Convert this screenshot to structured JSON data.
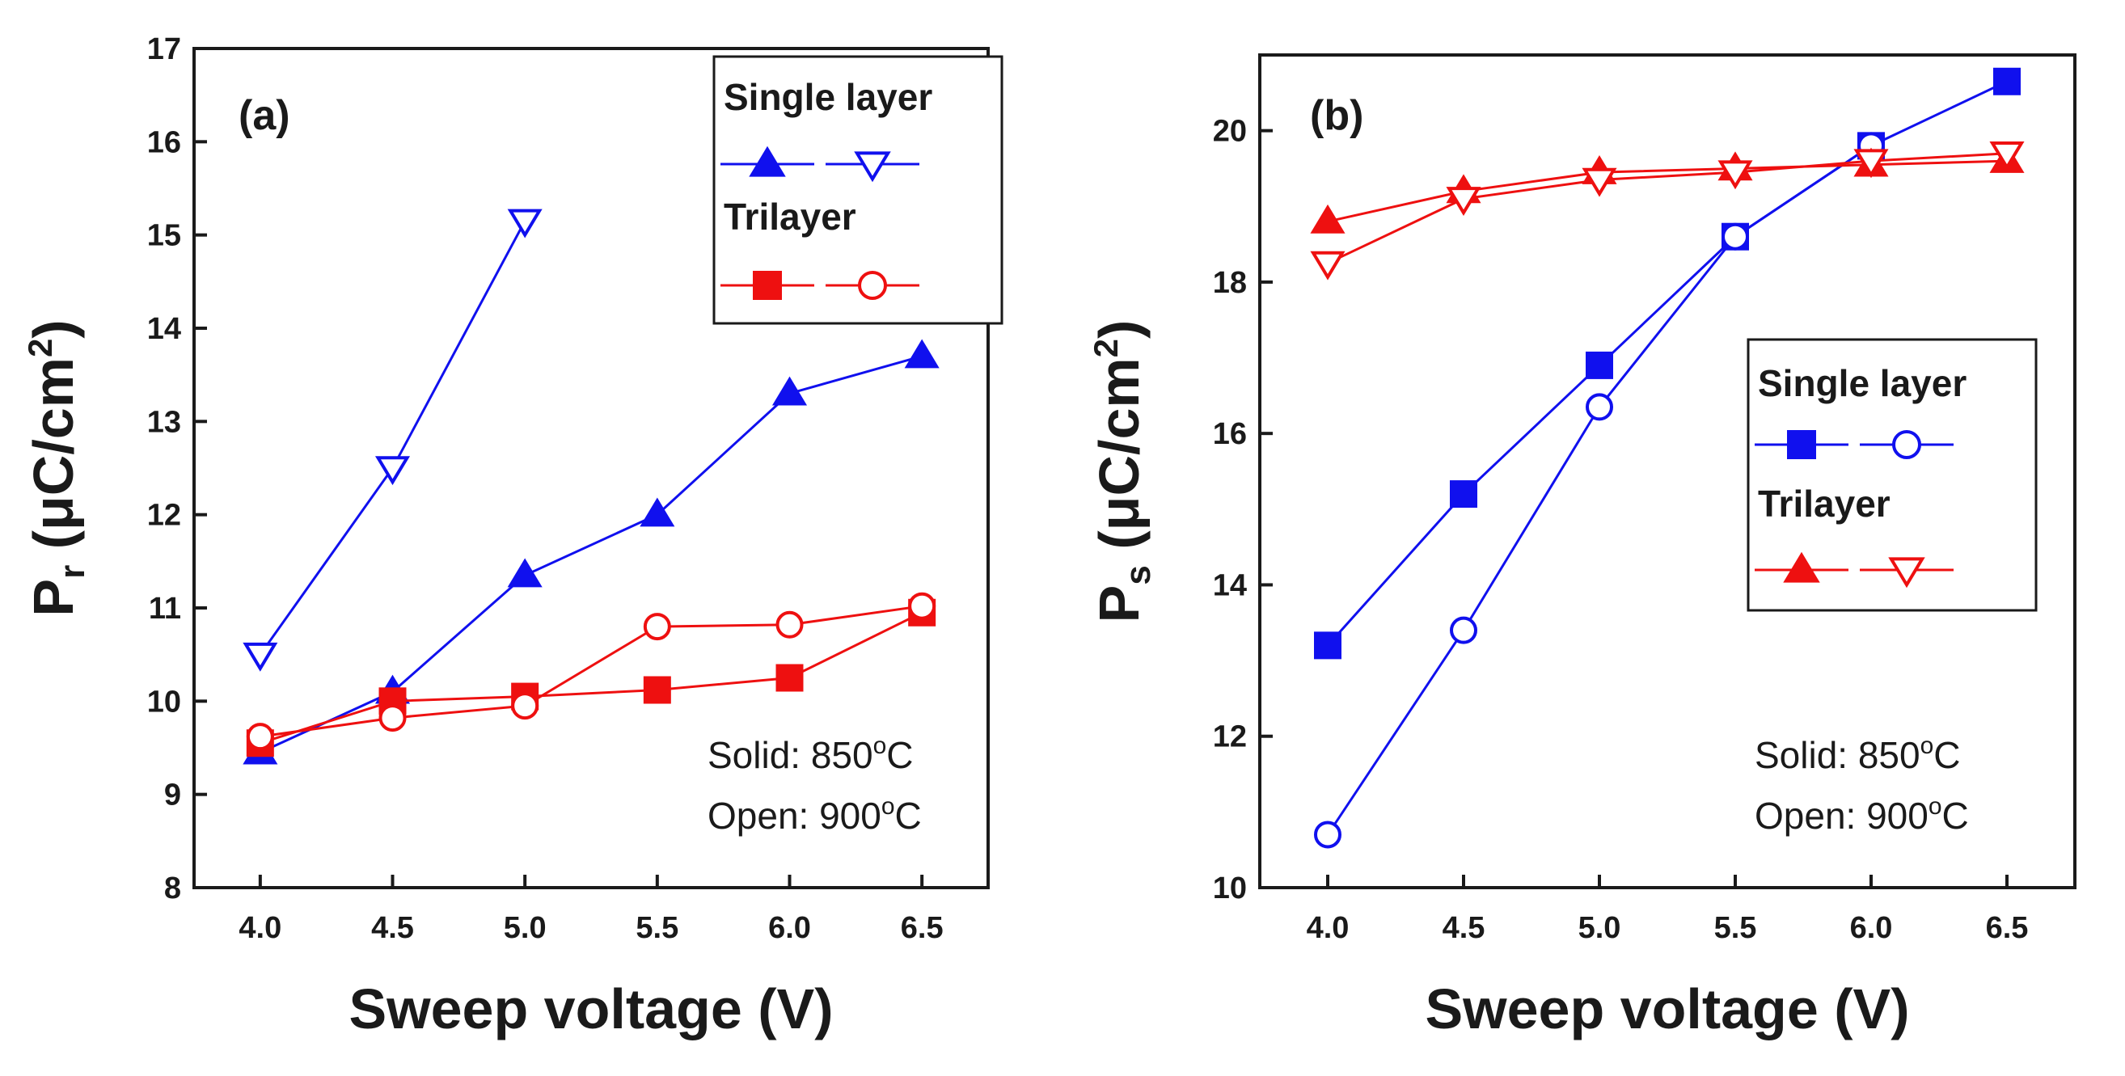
{
  "chart_data": [
    {
      "type": "line",
      "panel": "(a)",
      "xlabel": "Sweep voltage (V)",
      "ylabel": "P",
      "ylabel_sub": "r",
      "ylabel_unit": " (μC/cm",
      "ylabel_sup": "2",
      "ylabel_close": ")",
      "xlim": [
        3.75,
        6.75
      ],
      "ylim": [
        8,
        17
      ],
      "xticks": [
        "4.0",
        "4.5",
        "5.0",
        "5.5",
        "6.0",
        "6.5"
      ],
      "yticks": [
        "8",
        "9",
        "10",
        "11",
        "12",
        "13",
        "14",
        "15",
        "16",
        "17"
      ],
      "legend": {
        "group1": "Single layer",
        "group2": "Trilayer",
        "position": "top-right"
      },
      "notes": [
        {
          "prefix": "Solid: 850",
          "sup": "o",
          "suffix": "C"
        },
        {
          "prefix": "Open: 900",
          "sup": "o",
          "suffix": "C"
        }
      ],
      "series": [
        {
          "name": "Single layer 850°C",
          "group": "Single layer",
          "fill": "solid",
          "marker": "triangle-up",
          "color": "#1010ee",
          "x": [
            4.0,
            4.5,
            5.0,
            5.5,
            6.0,
            6.5
          ],
          "y": [
            9.45,
            10.1,
            11.35,
            12.0,
            13.3,
            13.7
          ]
        },
        {
          "name": "Single layer 900°C",
          "group": "Single layer",
          "fill": "open",
          "marker": "triangle-down",
          "color": "#1010ee",
          "x": [
            4.0,
            4.5,
            5.0
          ],
          "y": [
            10.5,
            12.5,
            15.15
          ]
        },
        {
          "name": "Trilayer 850°C",
          "group": "Trilayer",
          "fill": "solid",
          "marker": "square",
          "color": "#ee1010",
          "x": [
            4.0,
            4.5,
            5.0,
            5.5,
            6.0,
            6.5
          ],
          "y": [
            9.55,
            10.0,
            10.05,
            10.12,
            10.25,
            10.95
          ]
        },
        {
          "name": "Trilayer 900°C",
          "group": "Trilayer",
          "fill": "open",
          "marker": "circle",
          "color": "#ee1010",
          "x": [
            4.0,
            4.5,
            5.0,
            5.5,
            6.0,
            6.5
          ],
          "y": [
            9.62,
            9.82,
            9.95,
            10.8,
            10.82,
            11.02
          ]
        }
      ]
    },
    {
      "type": "line",
      "panel": "(b)",
      "xlabel": "Sweep voltage (V)",
      "ylabel": "P",
      "ylabel_sub": "s",
      "ylabel_unit": " (μC/cm",
      "ylabel_sup": "2",
      "ylabel_close": ")",
      "xlim": [
        3.75,
        6.75
      ],
      "ylim": [
        10,
        21
      ],
      "xticks": [
        "4.0",
        "4.5",
        "5.0",
        "5.5",
        "6.0",
        "6.5"
      ],
      "yticks": [
        "10",
        "12",
        "14",
        "16",
        "18",
        "20"
      ],
      "legend": {
        "group1": "Single layer",
        "group2": "Trilayer",
        "position": "center-right"
      },
      "notes": [
        {
          "prefix": "Solid: 850",
          "sup": "o",
          "suffix": "C"
        },
        {
          "prefix": "Open: 900",
          "sup": "o",
          "suffix": "C"
        }
      ],
      "series": [
        {
          "name": "Single layer 850°C",
          "group": "Single layer",
          "fill": "solid",
          "marker": "square",
          "color": "#1010ee",
          "x": [
            4.0,
            4.5,
            5.0,
            5.5,
            6.0,
            6.5
          ],
          "y": [
            13.2,
            15.2,
            16.9,
            18.6,
            19.8,
            20.65
          ]
        },
        {
          "name": "Single layer 900°C",
          "group": "Single layer",
          "fill": "open",
          "marker": "circle",
          "color": "#1010ee",
          "x": [
            4.0,
            4.5,
            5.0,
            5.5,
            6.0
          ],
          "y": [
            10.7,
            13.4,
            16.35,
            18.6,
            19.8
          ]
        },
        {
          "name": "Trilayer 850°C",
          "group": "Trilayer",
          "fill": "solid",
          "marker": "triangle-up",
          "color": "#ee1010",
          "x": [
            4.0,
            4.5,
            5.0,
            5.5,
            6.0,
            6.5
          ],
          "y": [
            18.8,
            19.2,
            19.45,
            19.5,
            19.55,
            19.6
          ]
        },
        {
          "name": "Trilayer 900°C",
          "group": "Trilayer",
          "fill": "open",
          "marker": "triangle-down",
          "color": "#ee1010",
          "x": [
            4.0,
            4.5,
            5.0,
            5.5,
            6.0,
            6.5
          ],
          "y": [
            18.25,
            19.1,
            19.35,
            19.45,
            19.6,
            19.7
          ]
        }
      ]
    }
  ]
}
